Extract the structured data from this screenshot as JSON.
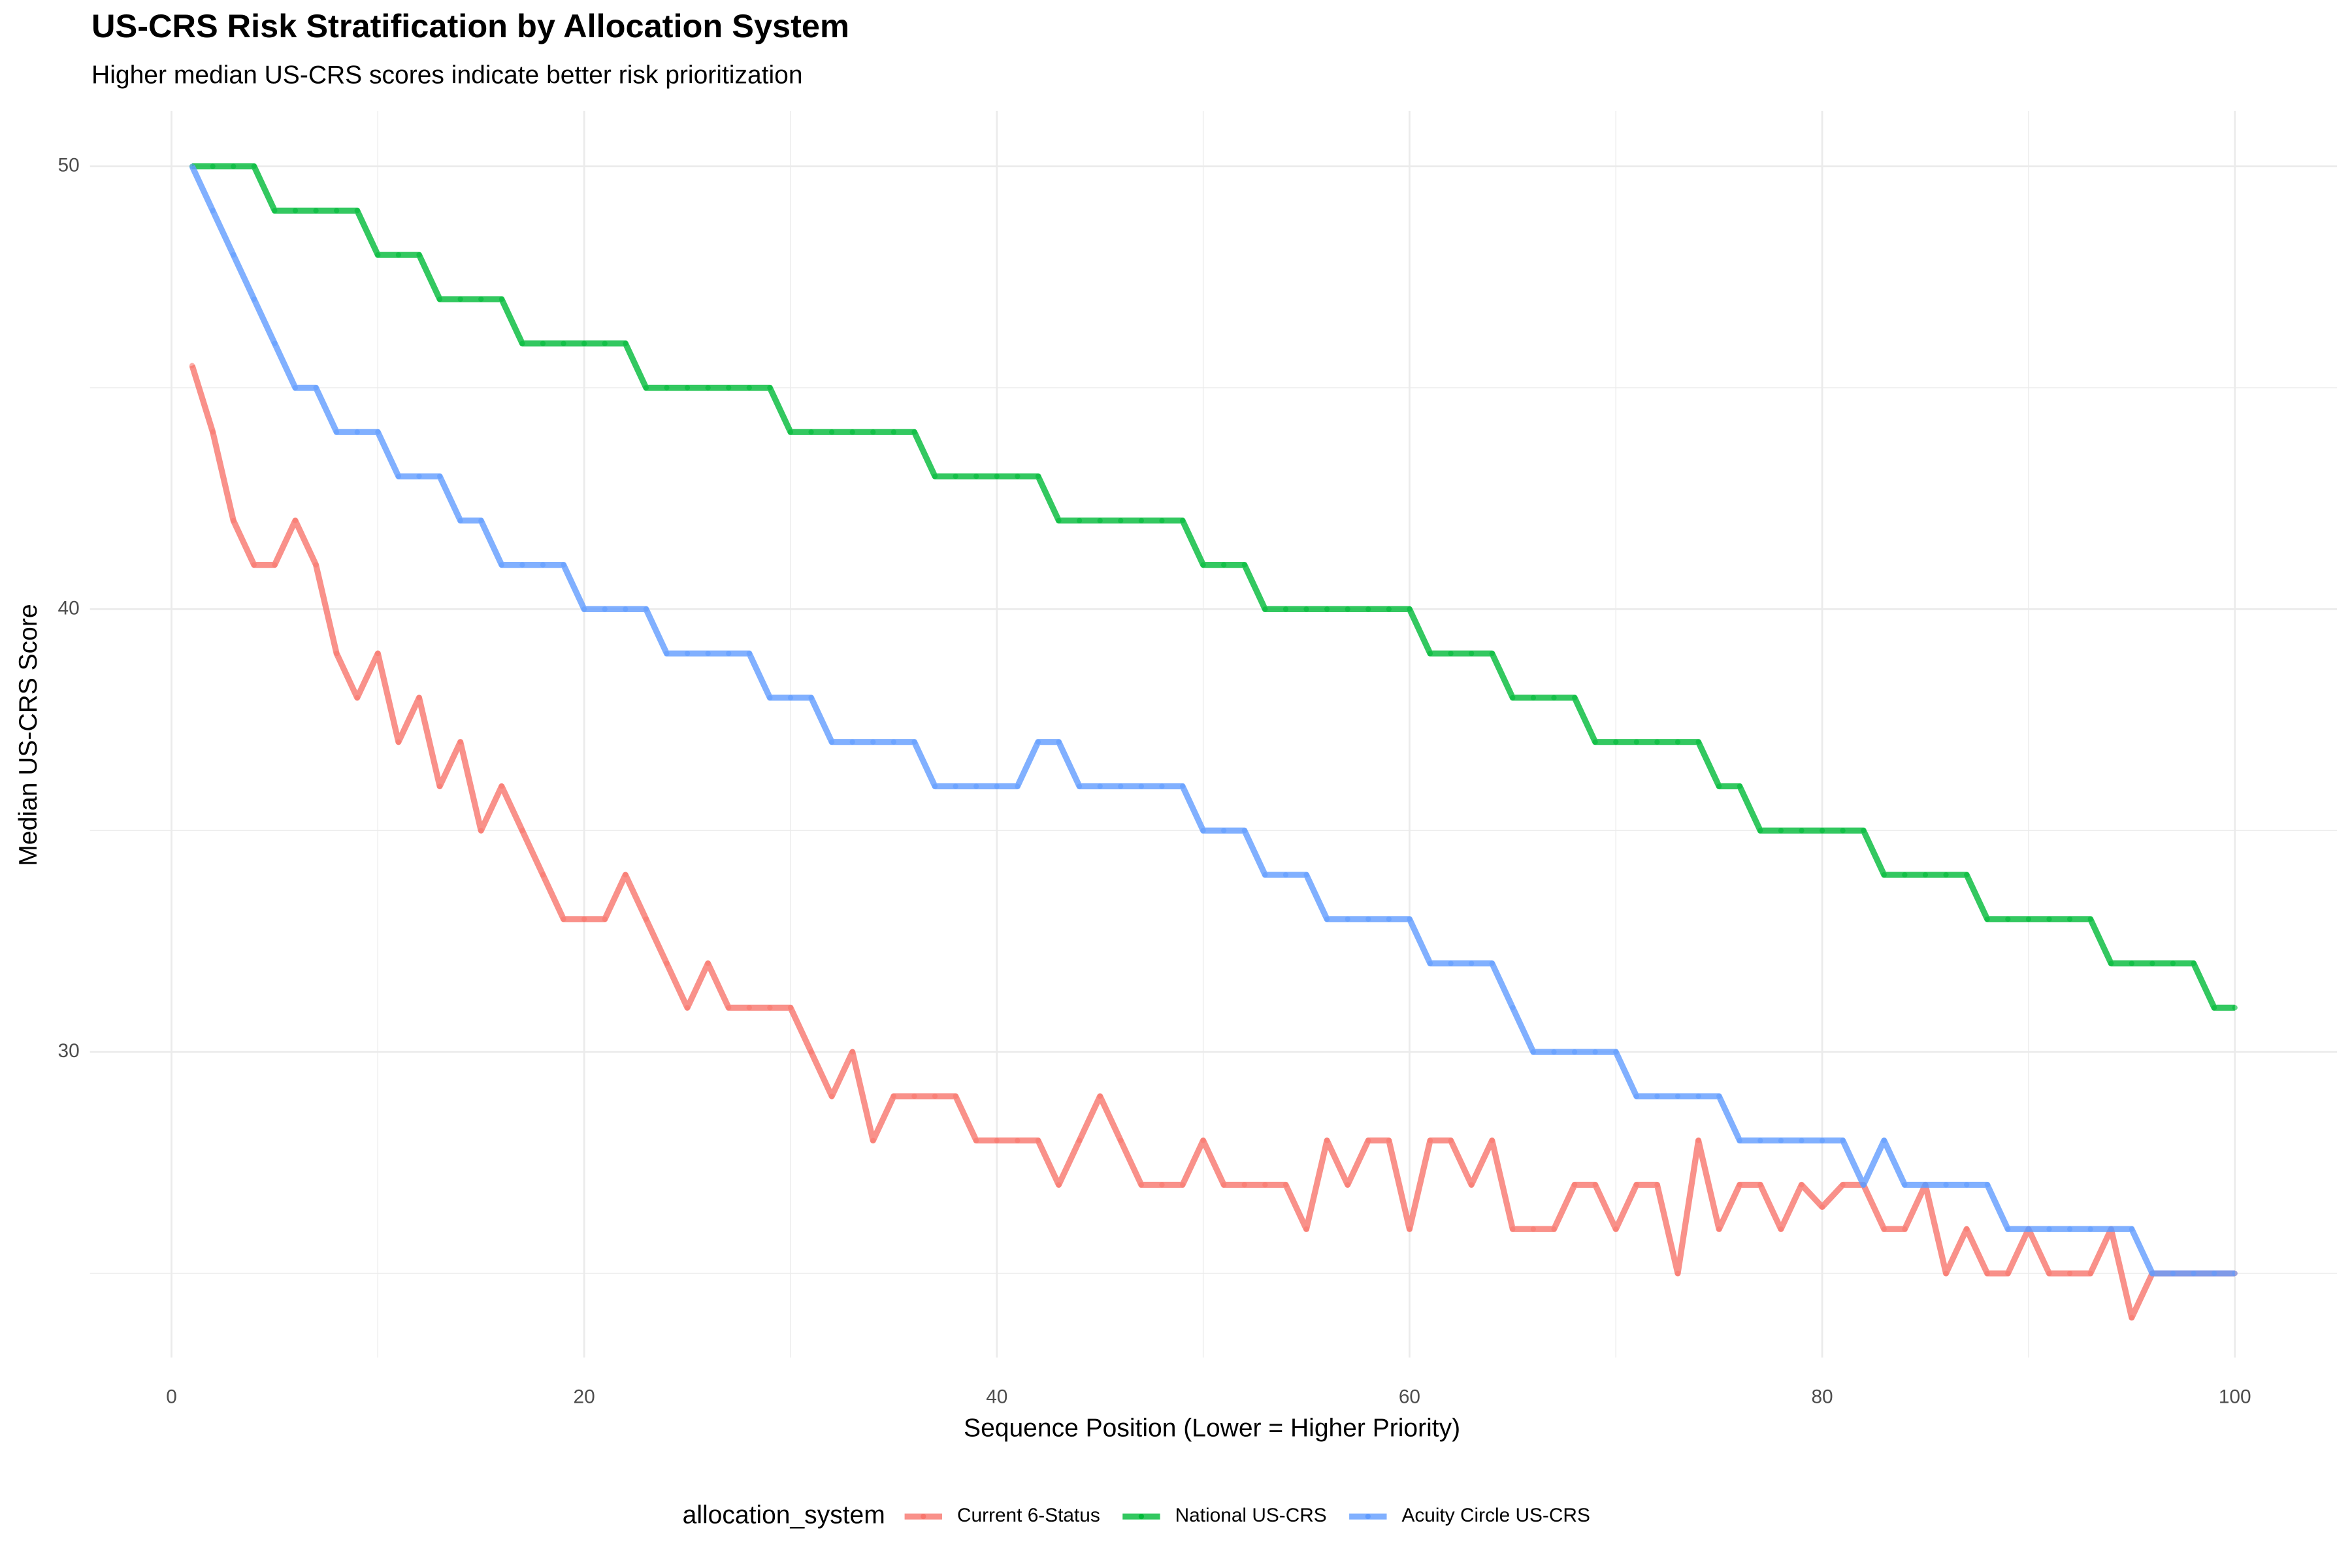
{
  "chart_data": {
    "type": "line",
    "title": "US-CRS Risk Stratification by Allocation System",
    "subtitle": "Higher median US-CRS scores indicate better risk prioritization",
    "x_label": "Sequence Position (Lower = Higher Priority)",
    "y_label": "Median US-CRS Score",
    "legend_title": "allocation_system",
    "legend_position": "bottom",
    "grid": true,
    "xlim": [
      -3.95,
      104.95
    ],
    "xticks": [
      0,
      20,
      40,
      60,
      80,
      100
    ],
    "x_minor_grid": [
      10,
      30,
      50,
      70,
      90
    ],
    "ylim": [
      23.1,
      51.25
    ],
    "yticks": [
      30,
      40,
      50
    ],
    "y_minor_grid": [
      25,
      35,
      45
    ],
    "x": [
      1,
      2,
      3,
      4,
      5,
      6,
      7,
      8,
      9,
      10,
      11,
      12,
      13,
      14,
      15,
      16,
      17,
      18,
      19,
      20,
      21,
      22,
      23,
      24,
      25,
      26,
      27,
      28,
      29,
      30,
      31,
      32,
      33,
      34,
      35,
      36,
      37,
      38,
      39,
      40,
      41,
      42,
      43,
      44,
      45,
      46,
      47,
      48,
      49,
      50,
      51,
      52,
      53,
      54,
      55,
      56,
      57,
      58,
      59,
      60,
      61,
      62,
      63,
      64,
      65,
      66,
      67,
      68,
      69,
      70,
      71,
      72,
      73,
      74,
      75,
      76,
      77,
      78,
      79,
      80,
      81,
      82,
      83,
      84,
      85,
      86,
      87,
      88,
      89,
      90,
      91,
      92,
      93,
      94,
      95,
      96,
      97,
      98,
      99,
      100
    ],
    "series": [
      {
        "name": "Current 6-Status",
        "color": "#F8766D",
        "values": [
          45.5,
          44,
          42,
          41,
          41,
          42,
          41,
          39,
          38,
          39,
          37,
          38,
          36,
          37,
          35,
          36,
          35,
          34,
          33,
          33,
          33,
          34,
          33,
          32,
          31,
          32,
          31,
          31,
          31,
          31,
          30,
          29,
          30,
          28,
          29,
          29,
          29,
          29,
          28,
          28,
          28,
          28,
          27,
          28,
          29,
          28,
          27,
          27,
          27,
          28,
          27,
          27,
          27,
          27,
          26,
          28,
          27,
          28,
          28,
          26,
          28,
          28,
          27,
          28,
          26,
          26,
          26,
          27,
          27,
          26,
          27,
          27,
          25,
          28,
          26,
          27,
          27,
          26,
          27,
          26.5,
          27,
          27,
          26,
          26,
          27,
          25,
          26,
          25,
          25,
          26,
          25,
          25,
          25,
          26,
          24,
          25,
          25,
          25,
          25,
          25
        ]
      },
      {
        "name": "National US-CRS",
        "color": "#00BA38",
        "values": [
          50,
          50,
          50,
          50,
          49,
          49,
          49,
          49,
          49,
          48,
          48,
          48,
          47,
          47,
          47,
          47,
          46,
          46,
          46,
          46,
          46,
          46,
          45,
          45,
          45,
          45,
          45,
          45,
          45,
          44,
          44,
          44,
          44,
          44,
          44,
          44,
          43,
          43,
          43,
          43,
          43,
          43,
          42,
          42,
          42,
          42,
          42,
          42,
          42,
          41,
          41,
          41,
          40,
          40,
          40,
          40,
          40,
          40,
          40,
          40,
          39,
          39,
          39,
          39,
          38,
          38,
          38,
          38,
          37,
          37,
          37,
          37,
          37,
          37,
          36,
          36,
          35,
          35,
          35,
          35,
          35,
          35,
          34,
          34,
          34,
          34,
          34,
          33,
          33,
          33,
          33,
          33,
          33,
          32,
          32,
          32,
          32,
          32,
          31,
          31
        ]
      },
      {
        "name": "Acuity Circle US-CRS",
        "color": "#619CFF",
        "values": [
          50,
          49,
          48,
          47,
          46,
          45,
          45,
          44,
          44,
          44,
          43,
          43,
          43,
          42,
          42,
          41,
          41,
          41,
          41,
          40,
          40,
          40,
          40,
          39,
          39,
          39,
          39,
          39,
          38,
          38,
          38,
          37,
          37,
          37,
          37,
          37,
          36,
          36,
          36,
          36,
          36,
          37,
          37,
          36,
          36,
          36,
          36,
          36,
          36,
          35,
          35,
          35,
          34,
          34,
          34,
          33,
          33,
          33,
          33,
          33,
          32,
          32,
          32,
          32,
          31,
          30,
          30,
          30,
          30,
          30,
          29,
          29,
          29,
          29,
          29,
          28,
          28,
          28,
          28,
          28,
          28,
          27,
          28,
          27,
          27,
          27,
          27,
          27,
          26,
          26,
          26,
          26,
          26,
          26,
          26,
          25,
          25,
          25,
          25,
          25
        ]
      }
    ]
  }
}
